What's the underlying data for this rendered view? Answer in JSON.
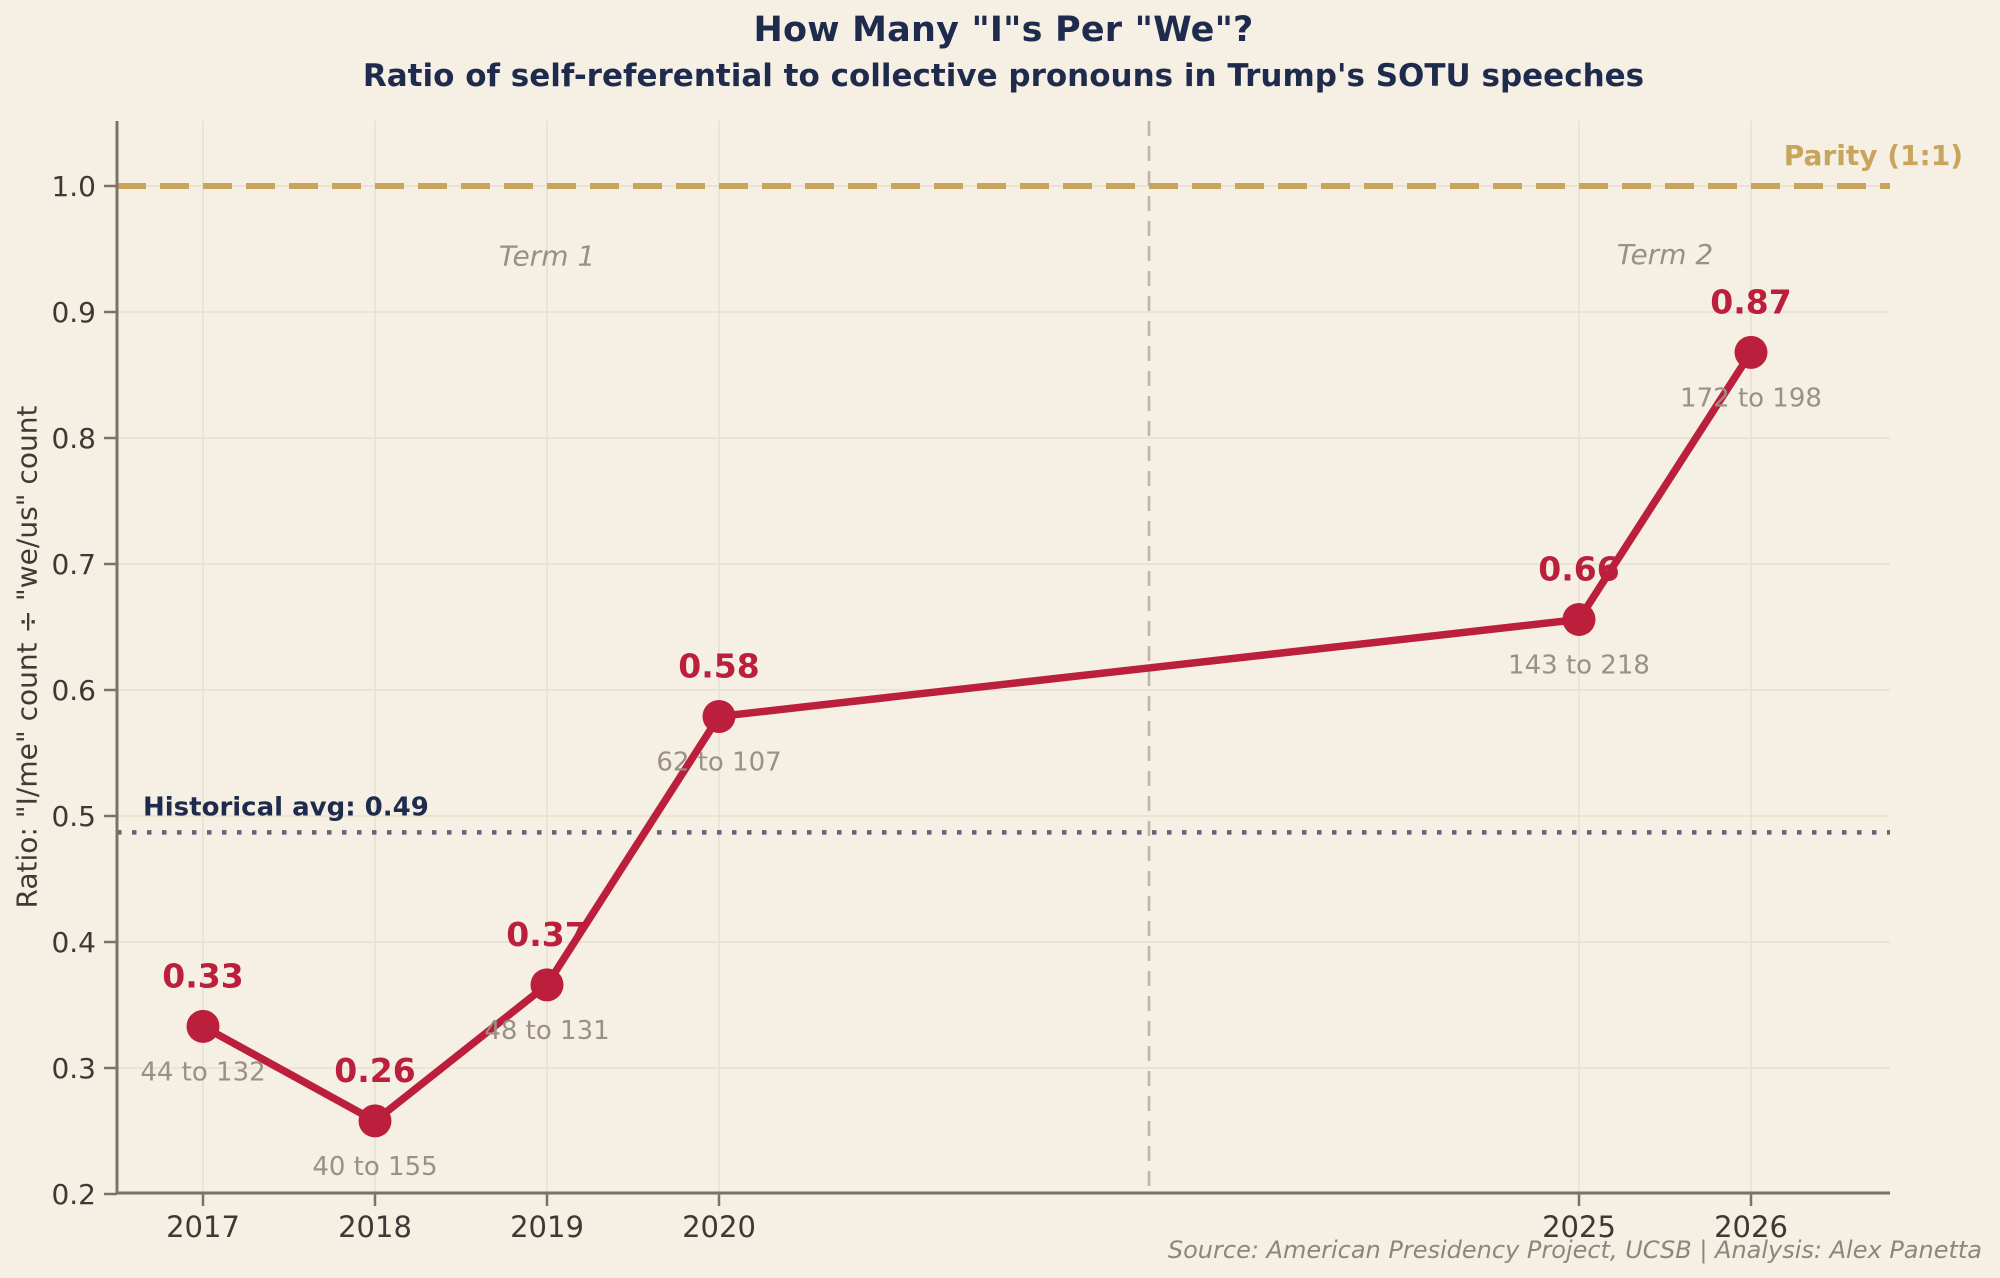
{
  "title": "How Many \"I\"s Per \"We\"?",
  "subtitle": "Ratio of self-referential to collective pronouns in Trump's SOTU speeches",
  "y_axis_label": "Ratio: \"I/me\" count ÷ \"we/us\" count",
  "source_note": "Source: American Presidency Project, UCSB  |  Analysis: Alex Panetta",
  "colors": {
    "background": "#f5efe4",
    "crimson": "#bb1f3c",
    "gold": "#c8a45c",
    "navy": "#1f2b4d",
    "gray_text": "#9a9083",
    "tick_text": "#3d3a35",
    "spine": "#7b7365",
    "grid": "#e8e1d0",
    "separator": "#bdb5a6",
    "hist_avg_line": "#5d6576"
  },
  "chart_data": {
    "type": "line",
    "title": "How Many \"I\"s Per \"We\"?",
    "subtitle": "Ratio of self-referential to collective pronouns in Trump's SOTU speeches",
    "xlabel": "",
    "ylabel": "Ratio: \"I/me\" count ÷ \"we/us\" count",
    "x": [
      2017,
      2018,
      2019,
      2020,
      2025,
      2026
    ],
    "values": [
      0.33,
      0.26,
      0.37,
      0.58,
      0.66,
      0.87
    ],
    "plot_ratios": [
      0.333,
      0.258,
      0.366,
      0.579,
      0.656,
      0.868
    ],
    "value_labels": [
      "0.33",
      "0.26",
      "0.37",
      "0.58",
      "0.66",
      "0.87"
    ],
    "count_labels": [
      "44 to 132",
      "40 to 155",
      "48 to 131",
      "62 to 107",
      "143 to 218",
      "172 to 198"
    ],
    "x_tick_labels": [
      "2017",
      "2018",
      "2019",
      "2020",
      "2025",
      "2026"
    ],
    "y_ticks": [
      0.2,
      0.3,
      0.4,
      0.5,
      0.6,
      0.7,
      0.8,
      0.9,
      1.0
    ],
    "xlim": [
      2016.5,
      2026.8
    ],
    "ylim": [
      0.2,
      1.052
    ],
    "grid": true,
    "legend": false,
    "reference_lines": {
      "parity": {
        "value": 1.0,
        "label": "Parity (1:1)"
      },
      "historical_avg": {
        "value": 0.487,
        "label": "Historical avg: 0.49"
      },
      "term_separator_x": 2022.5
    },
    "annotations": [
      {
        "text": "Term 1",
        "x": 2019.0,
        "y": 0.937
      },
      {
        "text": "Term 2",
        "x": 2025.5,
        "y": 0.938
      }
    ]
  }
}
